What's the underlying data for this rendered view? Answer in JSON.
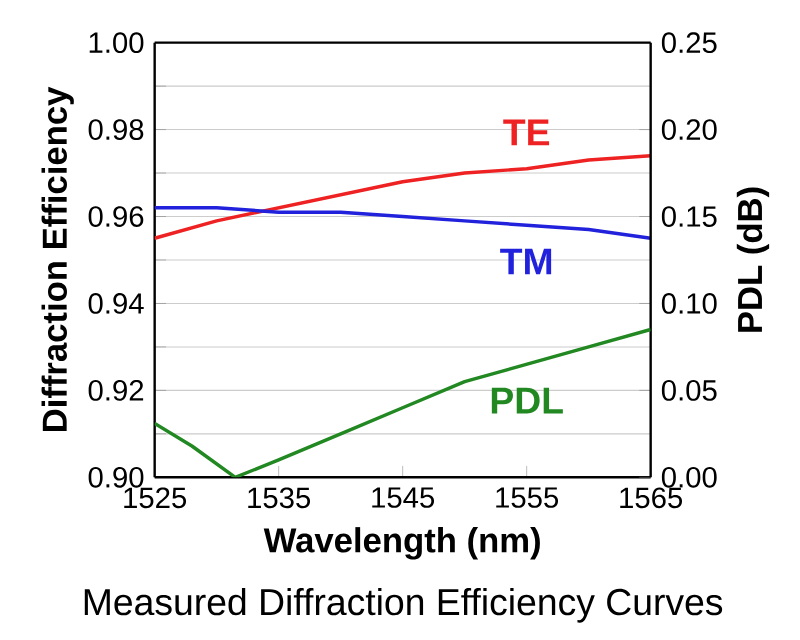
{
  "chart_data": {
    "type": "line",
    "xlabel": "Wavelength (nm)",
    "ylabel": "Diffraction Efficiency",
    "y2label": "PDL (dB)",
    "annotations": [
      "Measured Diffraction Efficiency Curves"
    ],
    "xlim": [
      1525,
      1565
    ],
    "xticks": [
      1525,
      1535,
      1545,
      1555,
      1565
    ],
    "ylim": [
      0.9,
      1.0
    ],
    "yticks": [
      {
        "value": 0.9,
        "label": "0.90"
      },
      {
        "value": 0.91,
        "label": null
      },
      {
        "value": 0.92,
        "label": "0.92"
      },
      {
        "value": 0.93,
        "label": null
      },
      {
        "value": 0.94,
        "label": "0.94"
      },
      {
        "value": 0.95,
        "label": null
      },
      {
        "value": 0.96,
        "label": "0.96"
      },
      {
        "value": 0.97,
        "label": null
      },
      {
        "value": 0.98,
        "label": "0.98"
      },
      {
        "value": 0.99,
        "label": null
      },
      {
        "value": 1.0,
        "label": "1.00"
      }
    ],
    "y2lim": [
      0.0,
      0.25
    ],
    "y2ticks": [
      {
        "value": 0.0,
        "label": "0.00"
      },
      {
        "value": 0.05,
        "label": "0.05"
      },
      {
        "value": 0.1,
        "label": "0.10"
      },
      {
        "value": 0.15,
        "label": "0.15"
      },
      {
        "value": 0.2,
        "label": "0.20"
      },
      {
        "value": 0.25,
        "label": "0.25"
      }
    ],
    "grid": "y",
    "marker": "none",
    "line_style": "solid",
    "series": [
      {
        "name": "TE",
        "color": "#ee2222",
        "x": [
          1525,
          1530,
          1535,
          1540,
          1545,
          1550,
          1555,
          1560,
          1565
        ],
        "values": [
          0.955,
          0.959,
          0.962,
          0.965,
          0.968,
          0.97,
          0.971,
          0.973,
          0.974
        ]
      },
      {
        "name": "TM",
        "color": "#2222dd",
        "x": [
          1525,
          1530,
          1535,
          1540,
          1545,
          1550,
          1555,
          1560,
          1565
        ],
        "values": [
          0.962,
          0.962,
          0.961,
          0.961,
          0.96,
          0.959,
          0.958,
          0.957,
          0.955
        ]
      },
      {
        "name": "PDL",
        "color": "#228822",
        "axis": "y2",
        "x": [
          1525,
          1528,
          1531.5,
          1535,
          1540,
          1545,
          1550,
          1555,
          1560,
          1565
        ],
        "values": [
          0.031,
          0.018,
          0.0,
          0.01,
          0.025,
          0.04,
          0.055,
          0.065,
          0.075,
          0.085
        ]
      }
    ]
  }
}
